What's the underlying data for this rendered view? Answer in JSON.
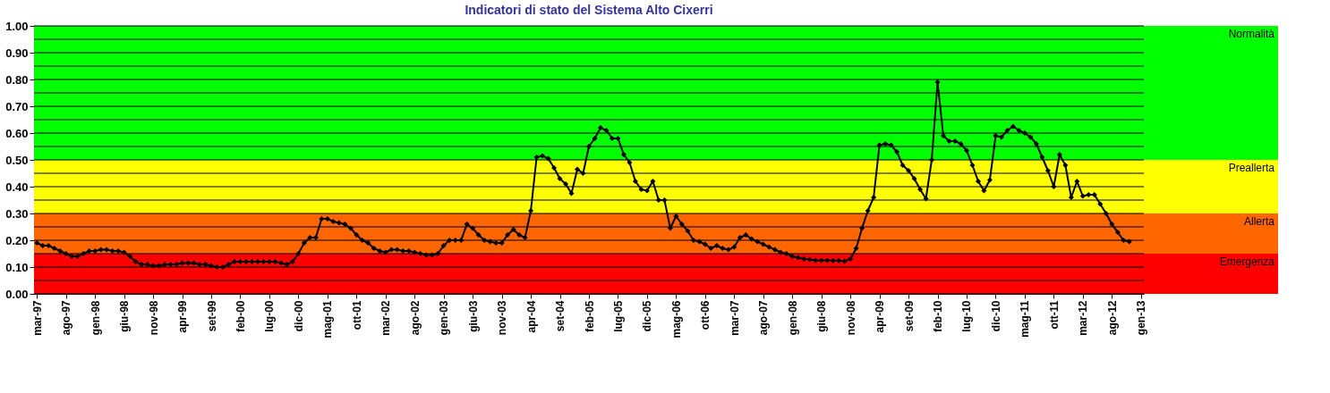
{
  "chart_data": {
    "type": "line",
    "title": "Indicatori di stato del Sistema Alto Cixerri",
    "categories": [
      "mar-97",
      null,
      null,
      null,
      null,
      "ago-97",
      null,
      null,
      null,
      null,
      "gen-98",
      null,
      null,
      null,
      null,
      "giu-98",
      null,
      null,
      null,
      null,
      "nov-98",
      null,
      null,
      null,
      null,
      "apr-99",
      null,
      null,
      null,
      null,
      "set-99",
      null,
      null,
      null,
      null,
      "feb-00",
      null,
      null,
      null,
      null,
      "lug-00",
      null,
      null,
      null,
      null,
      "dic-00",
      null,
      null,
      null,
      null,
      "mag-01",
      null,
      null,
      null,
      null,
      "ott-01",
      null,
      null,
      null,
      null,
      "mar-02",
      null,
      null,
      null,
      null,
      "ago-02",
      null,
      null,
      null,
      null,
      "gen-03",
      null,
      null,
      null,
      null,
      "giu-03",
      null,
      null,
      null,
      null,
      "nov-03",
      null,
      null,
      null,
      null,
      "apr-04",
      null,
      null,
      null,
      null,
      "set-04",
      null,
      null,
      null,
      null,
      "feb-05",
      null,
      null,
      null,
      null,
      "lug-05",
      null,
      null,
      null,
      null,
      "dic-05",
      null,
      null,
      null,
      null,
      "mag-06",
      null,
      null,
      null,
      null,
      "ott-06",
      null,
      null,
      null,
      null,
      "mar-07",
      null,
      null,
      null,
      null,
      "ago-07",
      null,
      null,
      null,
      null,
      "gen-08",
      null,
      null,
      null,
      null,
      "giu-08",
      null,
      null,
      null,
      null,
      "nov-08",
      null,
      null,
      null,
      null,
      "apr-09",
      null,
      null,
      null,
      null,
      "set-09",
      null,
      null,
      null,
      null,
      "feb-10",
      null,
      null,
      null,
      null,
      "lug-10",
      null,
      null,
      null,
      null,
      "dic-10",
      null,
      null,
      null,
      null,
      "mag-11",
      null,
      null,
      null,
      null,
      "ott-11",
      null,
      null,
      null,
      null,
      "mar-12",
      null,
      null,
      null,
      null,
      "ago-12",
      null,
      null,
      null,
      null,
      "gen-13"
    ],
    "series": [
      {
        "color": "#000000",
        "values": [
          0.19,
          0.18,
          0.18,
          0.17,
          0.16,
          0.15,
          0.14,
          0.14,
          0.15,
          0.16,
          0.16,
          0.165,
          0.165,
          0.16,
          0.16,
          0.155,
          0.14,
          0.12,
          0.11,
          0.11,
          0.105,
          0.105,
          0.11,
          0.11,
          0.11,
          0.115,
          0.115,
          0.115,
          0.11,
          0.11,
          0.105,
          0.1,
          0.1,
          0.11,
          0.12,
          0.12,
          0.12,
          0.12,
          0.12,
          0.12,
          0.12,
          0.12,
          0.115,
          0.11,
          0.12,
          0.15,
          0.19,
          0.21,
          0.21,
          0.28,
          0.28,
          0.27,
          0.265,
          0.26,
          0.245,
          0.22,
          0.2,
          0.19,
          0.17,
          0.16,
          0.155,
          0.165,
          0.165,
          0.16,
          0.16,
          0.155,
          0.15,
          0.145,
          0.145,
          0.15,
          0.18,
          0.2,
          0.2,
          0.2,
          0.26,
          0.245,
          0.22,
          0.2,
          0.195,
          0.19,
          0.19,
          0.22,
          0.24,
          0.22,
          0.21,
          0.31,
          0.51,
          0.515,
          0.505,
          0.47,
          0.43,
          0.41,
          0.375,
          0.465,
          0.45,
          0.55,
          0.58,
          0.62,
          0.61,
          0.58,
          0.58,
          0.52,
          0.49,
          0.42,
          0.39,
          0.385,
          0.42,
          0.35,
          0.35,
          0.245,
          0.29,
          0.26,
          0.235,
          0.2,
          0.195,
          0.185,
          0.17,
          0.18,
          0.17,
          0.165,
          0.175,
          0.21,
          0.22,
          0.205,
          0.195,
          0.185,
          0.175,
          0.165,
          0.155,
          0.15,
          0.14,
          0.135,
          0.13,
          0.128,
          0.125,
          0.125,
          0.125,
          0.124,
          0.124,
          0.122,
          0.13,
          0.17,
          0.245,
          0.31,
          0.36,
          0.555,
          0.56,
          0.555,
          0.53,
          0.48,
          0.46,
          0.43,
          0.39,
          0.355,
          0.5,
          0.79,
          0.59,
          0.57,
          0.57,
          0.56,
          0.535,
          0.48,
          0.42,
          0.385,
          0.425,
          0.59,
          0.585,
          0.61,
          0.625,
          0.61,
          0.6,
          0.585,
          0.56,
          0.51,
          0.46,
          0.4,
          0.52,
          0.48,
          0.36,
          0.42,
          0.365,
          0.37,
          0.37,
          0.335,
          0.3,
          0.26,
          0.23,
          0.2,
          0.195,
          null,
          null
        ]
      }
    ],
    "ylim": [
      0,
      1
    ],
    "yticks": [
      {
        "value": 0,
        "label": "0.00"
      },
      {
        "value": 0.05,
        "label": null
      },
      {
        "value": 0.1,
        "label": "0.10"
      },
      {
        "value": 0.15,
        "label": null
      },
      {
        "value": 0.2,
        "label": "0.20"
      },
      {
        "value": 0.25,
        "label": null
      },
      {
        "value": 0.3,
        "label": "0.30"
      },
      {
        "value": 0.35,
        "label": null
      },
      {
        "value": 0.4,
        "label": "0.40"
      },
      {
        "value": 0.45,
        "label": null
      },
      {
        "value": 0.5,
        "label": "0.50"
      },
      {
        "value": 0.55,
        "label": null
      },
      {
        "value": 0.6,
        "label": "0.60"
      },
      {
        "value": 0.65,
        "label": null
      },
      {
        "value": 0.7,
        "label": "0.70"
      },
      {
        "value": 0.75,
        "label": null
      },
      {
        "value": 0.8,
        "label": "0.80"
      },
      {
        "value": 0.85,
        "label": null
      },
      {
        "value": 0.9,
        "label": "0.90"
      },
      {
        "value": 0.95,
        "label": null
      },
      {
        "value": 1.0,
        "label": "1.00"
      }
    ],
    "grid": "y",
    "marker": "diamond",
    "line_style": "solid",
    "legend": false,
    "bands": [
      {
        "axis": "y",
        "from": 0,
        "to": 0.15,
        "label": "Emergenza",
        "color": "#ff0000"
      },
      {
        "axis": "y",
        "from": 0.15,
        "to": 0.3,
        "label": "Allerta",
        "color": "#ff6600"
      },
      {
        "axis": "y",
        "from": 0.3,
        "to": 0.5,
        "label": "Preallerta",
        "color": "#ffff00"
      },
      {
        "axis": "y",
        "from": 0.5,
        "to": 1.0,
        "label": "Normalità",
        "color": "#00ff00"
      }
    ]
  }
}
